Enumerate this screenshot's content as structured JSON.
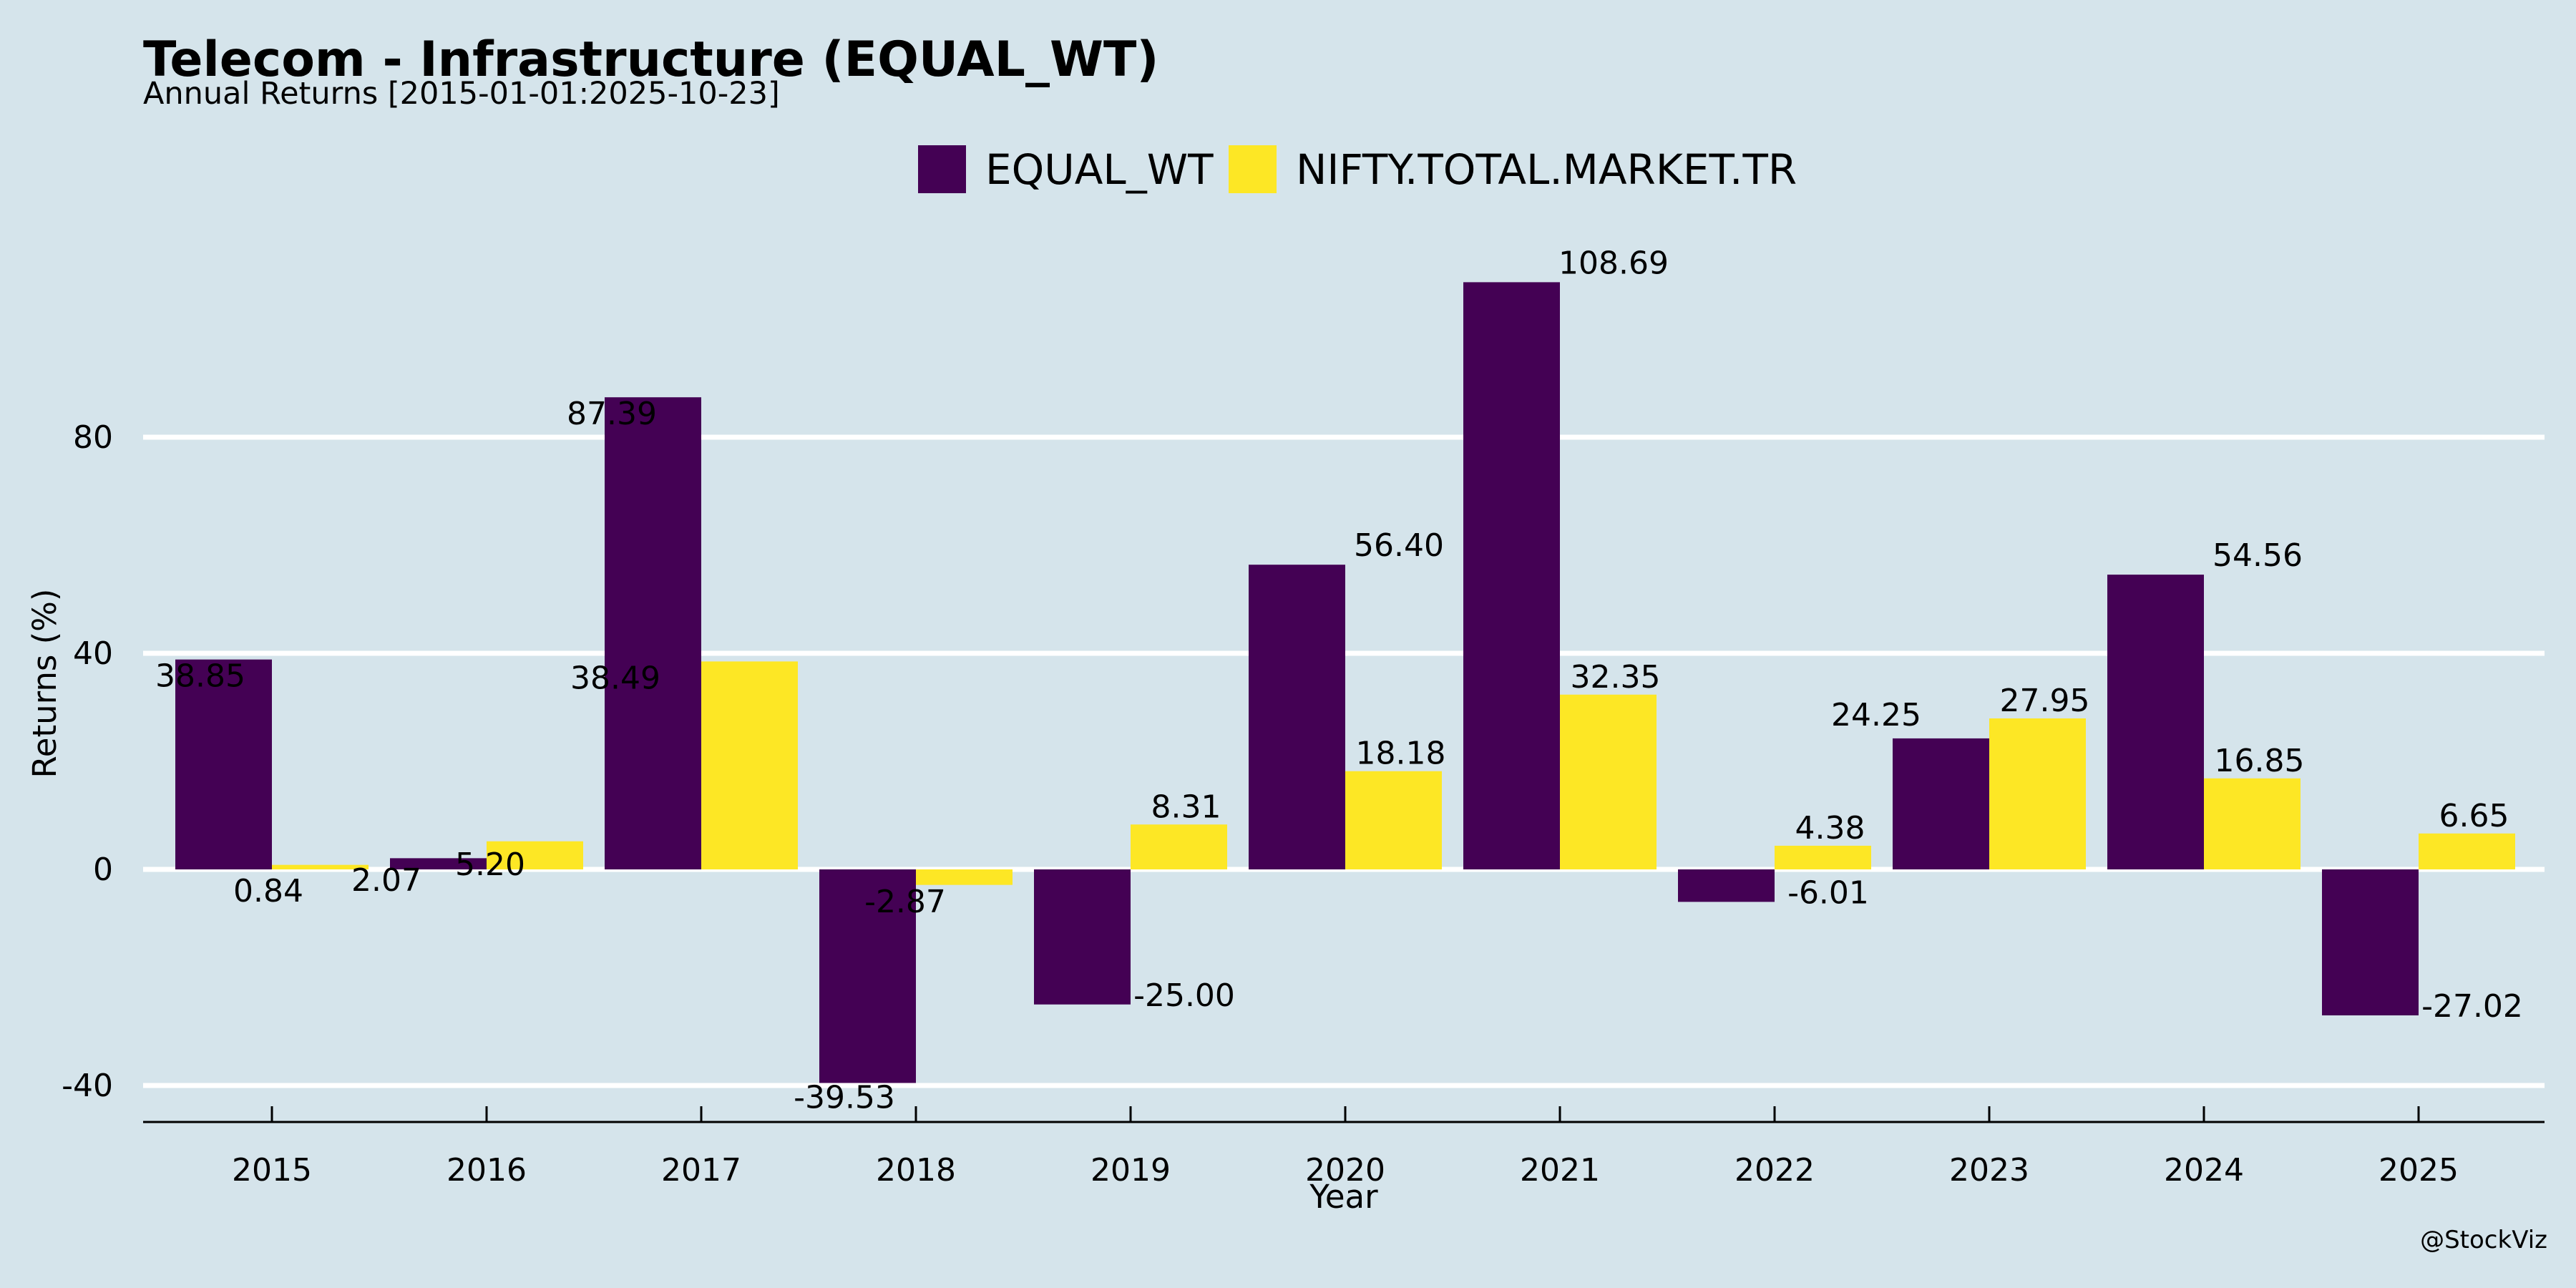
{
  "chart_data": {
    "type": "bar",
    "title": "Telecom - Infrastructure (EQUAL_WT)",
    "subtitle": "Annual Returns [2015-01-01:2025-10-23]",
    "xlabel": "Year",
    "ylabel": "Returns (%)",
    "categories": [
      "2015",
      "2016",
      "2017",
      "2018",
      "2019",
      "2020",
      "2021",
      "2022",
      "2023",
      "2024",
      "2025"
    ],
    "series": [
      {
        "name": "EQUAL_WT",
        "color": "#440154",
        "values": [
          38.85,
          2.07,
          87.39,
          -39.53,
          -25.0,
          56.4,
          108.69,
          -6.01,
          24.25,
          54.56,
          -27.02
        ],
        "labels": [
          "38.85",
          "2.07",
          "87.39",
          "-39.53",
          "-25.00",
          "56.40",
          "108.69",
          "-6.01",
          "24.25",
          "54.56",
          "-27.02"
        ]
      },
      {
        "name": "NIFTY.TOTAL.MARKET.TR",
        "color": "#fde725",
        "values": [
          0.84,
          5.2,
          38.49,
          -2.87,
          8.31,
          18.18,
          32.35,
          4.38,
          27.95,
          16.85,
          6.65
        ],
        "labels": [
          "0.84",
          "5.20",
          "38.49",
          "-2.87",
          "8.31",
          "18.18",
          "32.35",
          "4.38",
          "27.95",
          "16.85",
          "6.65"
        ]
      }
    ],
    "yticks": [
      -40,
      0,
      40,
      80
    ],
    "ylim": [
      -47,
      125
    ],
    "grid": true,
    "legend_position": "top-center",
    "watermark": "@StockViz"
  }
}
